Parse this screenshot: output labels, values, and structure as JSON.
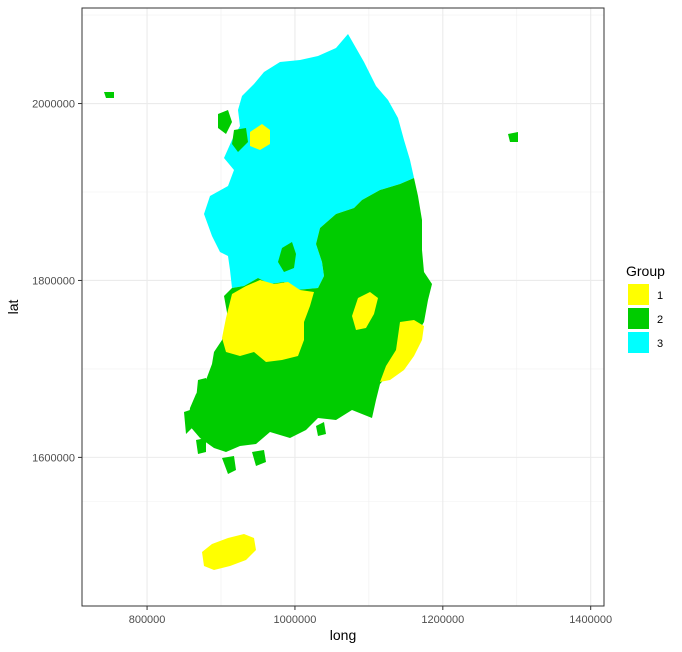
{
  "chart_data": {
    "type": "choropleth-map",
    "xlabel": "long",
    "ylabel": "lat",
    "xlim": [
      712000,
      1418000
    ],
    "ylim": [
      1432000,
      2108000
    ],
    "x_ticks": [
      800000,
      1000000,
      1200000,
      1400000
    ],
    "y_ticks": [
      1600000,
      1800000,
      2000000
    ],
    "x_tick_labels": [
      "800000",
      "1000000",
      "1200000",
      "1400000"
    ],
    "y_tick_labels": [
      "1600000",
      "1800000",
      "2000000"
    ],
    "grid": true,
    "legend": {
      "title": "Group",
      "placement": "right",
      "entries": [
        {
          "label": "1",
          "color": "#FFFF00"
        },
        {
          "label": "2",
          "color": "#00CC00"
        },
        {
          "label": "3",
          "color": "#00FFFF"
        }
      ]
    },
    "regions": [
      {
        "group": "3",
        "area": "north-west / central mainland"
      },
      {
        "group": "2",
        "area": "east and south mainland"
      },
      {
        "group": "1",
        "area": "south-central inland, north-west pocket, south-east coast, Jeju island"
      }
    ]
  }
}
